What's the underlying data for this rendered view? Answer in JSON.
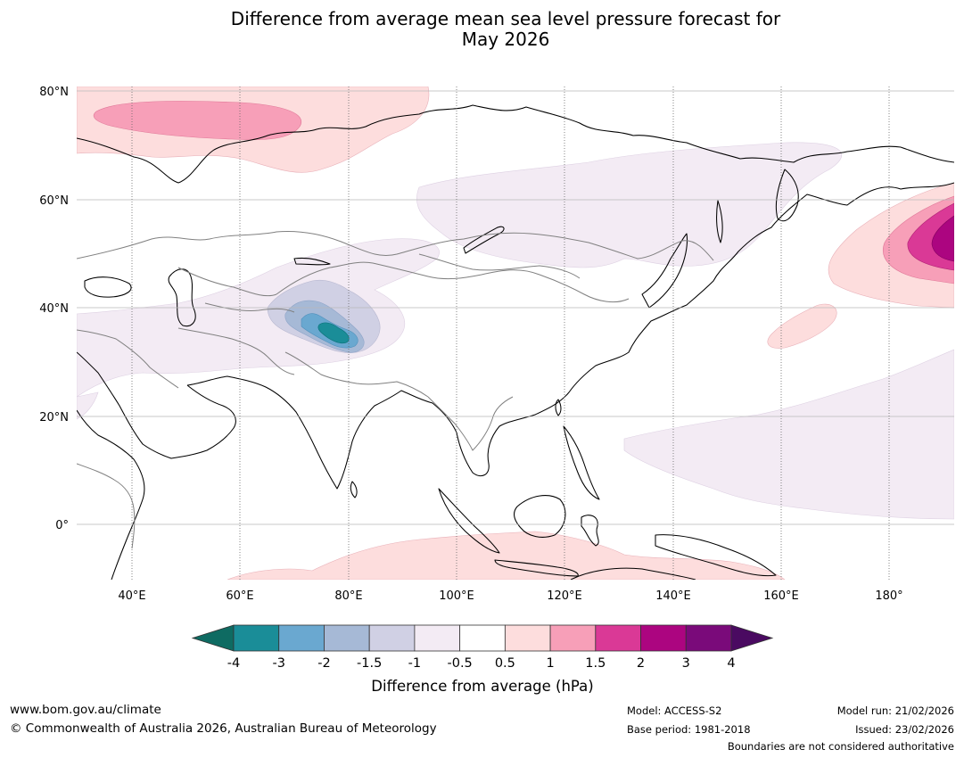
{
  "title": {
    "line1": "Difference from average mean sea level pressure forecast for",
    "line2": "May 2026"
  },
  "axes": {
    "lat_labels": [
      "80°N",
      "60°N",
      "40°N",
      "20°N",
      "0°"
    ],
    "lon_labels": [
      "40°E",
      "60°E",
      "80°E",
      "100°E",
      "120°E",
      "140°E",
      "160°E",
      "180°"
    ]
  },
  "legend": {
    "tick_labels": [
      "-4",
      "-3",
      "-2",
      "-1.5",
      "-1",
      "-0.5",
      "0.5",
      "1",
      "1.5",
      "2",
      "3",
      "4"
    ],
    "colors": [
      "#1a8d98",
      "#6aa8d0",
      "#a6b9d6",
      "#d0d0e4",
      "#f3ebf4",
      "#ffffff",
      "#fddddd",
      "#f79fb8",
      "#da3996",
      "#ac0580",
      "#7a0a7a"
    ],
    "low_extend_color": "#0e6b62",
    "high_extend_color": "#4a0a61",
    "label": "Difference from average (hPa)"
  },
  "footer": {
    "url": "www.bom.gov.au/climate",
    "copyright": "© Commonwealth of Australia 2026, Australian Bureau of Meteorology",
    "model": "Model: ACCESS-S2",
    "base_period": "Base period: 1981-2018",
    "model_run": "Model run: 21/02/2026",
    "issued": "Issued: 23/02/2026",
    "disclaimer": "Boundaries are not considered authoritative"
  }
}
